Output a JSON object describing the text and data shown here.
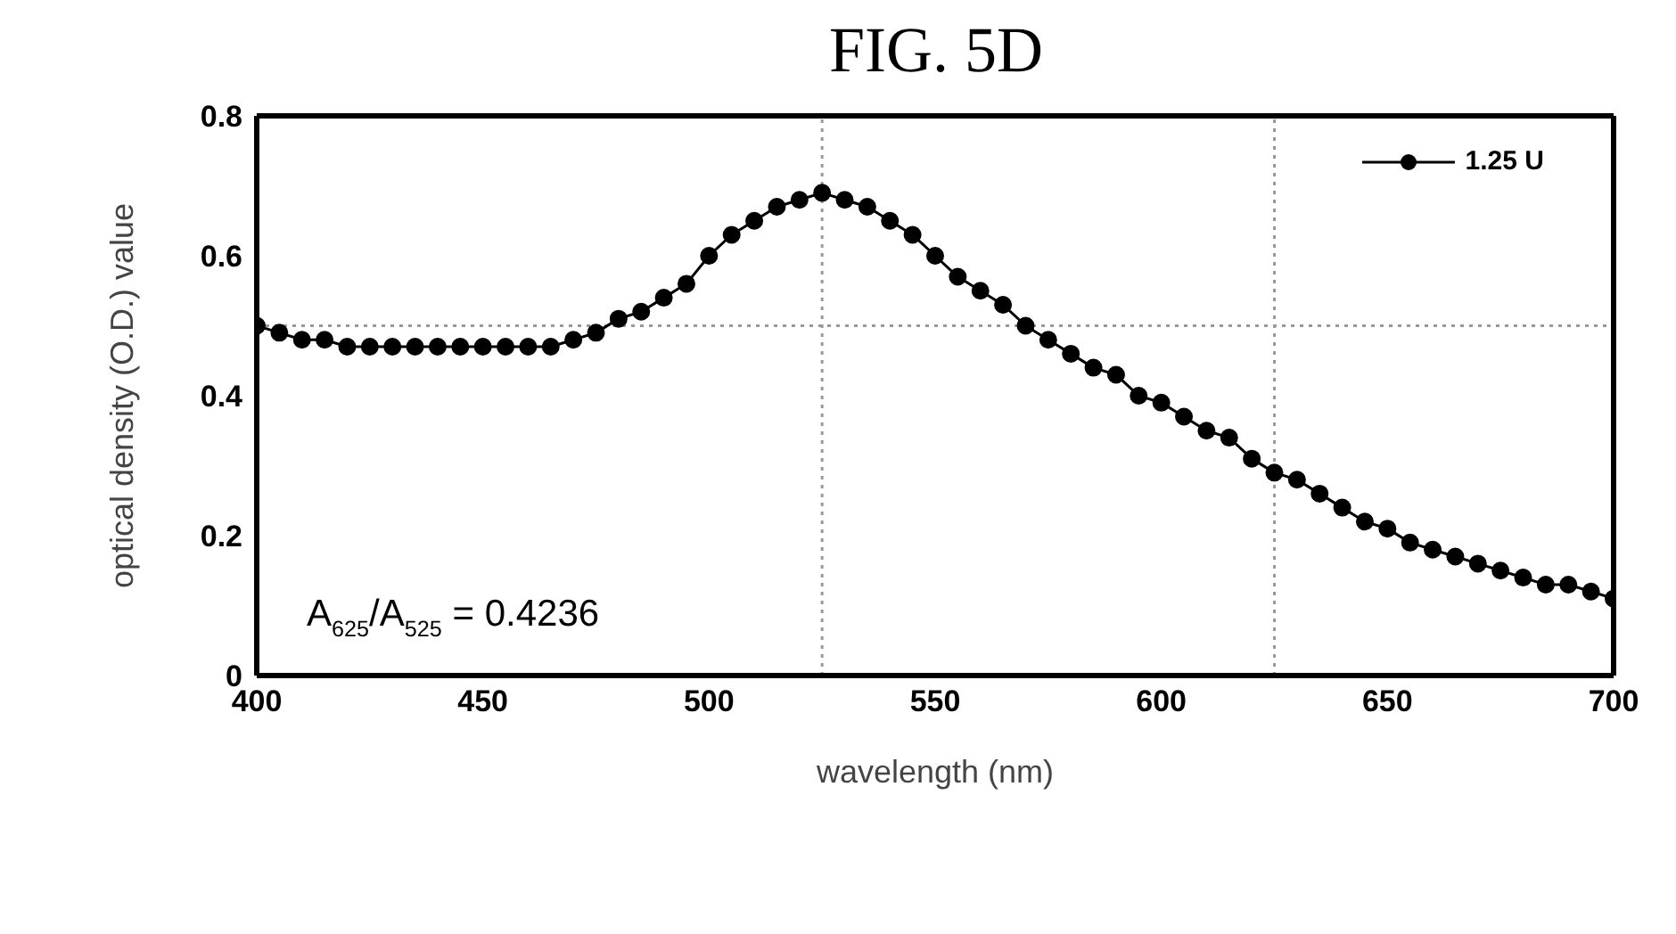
{
  "chart_data": {
    "type": "line",
    "title": "FIG. 5D",
    "xlabel": "wavelength (nm)",
    "ylabel": "optical density (O.D.) value",
    "x": [
      400,
      405,
      410,
      415,
      420,
      425,
      430,
      435,
      440,
      445,
      450,
      455,
      460,
      465,
      470,
      475,
      480,
      485,
      490,
      495,
      500,
      505,
      510,
      515,
      520,
      525,
      530,
      535,
      540,
      545,
      550,
      555,
      560,
      565,
      570,
      575,
      580,
      585,
      590,
      595,
      600,
      605,
      610,
      615,
      620,
      625,
      630,
      635,
      640,
      645,
      650,
      655,
      660,
      665,
      670,
      675,
      680,
      685,
      690,
      695,
      700
    ],
    "series": [
      {
        "name": "1.25 U",
        "color": "#000000",
        "values": [
          0.5,
          0.49,
          0.48,
          0.48,
          0.47,
          0.47,
          0.47,
          0.47,
          0.47,
          0.47,
          0.47,
          0.47,
          0.47,
          0.47,
          0.48,
          0.49,
          0.51,
          0.52,
          0.54,
          0.56,
          0.6,
          0.63,
          0.65,
          0.67,
          0.68,
          0.69,
          0.68,
          0.67,
          0.65,
          0.63,
          0.6,
          0.57,
          0.55,
          0.53,
          0.5,
          0.48,
          0.46,
          0.44,
          0.43,
          0.4,
          0.39,
          0.37,
          0.35,
          0.34,
          0.31,
          0.29,
          0.28,
          0.26,
          0.24,
          0.22,
          0.21,
          0.19,
          0.18,
          0.17,
          0.16,
          0.15,
          0.14,
          0.13,
          0.13,
          0.12,
          0.11
        ]
      }
    ],
    "xlim": [
      400,
      700
    ],
    "xticks": [
      400,
      450,
      500,
      550,
      600,
      650,
      700
    ],
    "ylim": [
      0,
      0.8
    ],
    "yticks": [
      0,
      0.2,
      0.4,
      0.6,
      0.8
    ],
    "ref_lines": [
      {
        "axis": "x",
        "value": 525,
        "color": "#999999",
        "line_style": "dotted"
      },
      {
        "axis": "x",
        "value": 625,
        "color": "#999999",
        "line_style": "dotted"
      },
      {
        "axis": "y",
        "value": 0.5,
        "color": "#999999",
        "line_style": "dotted"
      }
    ],
    "annotations": [
      "A$_{625}$/A$_{525}$ = 0.4236"
    ],
    "legend": "top right",
    "marker": "circle",
    "line_style": "solid",
    "grid": false
  }
}
